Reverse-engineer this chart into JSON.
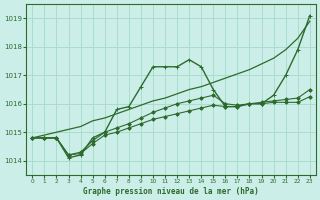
{
  "title": "Graphe pression niveau de la mer (hPa)",
  "bg_color": "#cceee8",
  "grid_color": "#aaddcc",
  "line_color": "#2d6a2d",
  "xlim": [
    -0.5,
    23.5
  ],
  "ylim": [
    1013.5,
    1019.5
  ],
  "yticks": [
    1014,
    1015,
    1016,
    1017,
    1018,
    1019
  ],
  "xticks": [
    0,
    1,
    2,
    3,
    4,
    5,
    6,
    7,
    8,
    9,
    10,
    11,
    12,
    13,
    14,
    15,
    16,
    17,
    18,
    19,
    20,
    21,
    22,
    23
  ],
  "series": [
    {
      "y": [
        1014.8,
        1014.8,
        1014.8,
        1014.1,
        1014.2,
        1014.8,
        1015.0,
        1015.8,
        1015.9,
        1016.6,
        1017.3,
        1017.3,
        1017.3,
        1017.55,
        1017.3,
        1016.5,
        1015.9,
        1015.9,
        1016.0,
        1016.0,
        1016.3,
        1017.0,
        1017.9,
        1019.1
      ],
      "marker": "+",
      "markersize": 3.5,
      "lw": 1.0
    },
    {
      "y": [
        1014.8,
        1014.9,
        1015.0,
        1015.1,
        1015.2,
        1015.4,
        1015.5,
        1015.65,
        1015.8,
        1015.95,
        1016.1,
        1016.2,
        1016.35,
        1016.5,
        1016.6,
        1016.75,
        1016.9,
        1017.05,
        1017.2,
        1017.4,
        1017.6,
        1017.9,
        1018.3,
        1018.9
      ],
      "marker": null,
      "markersize": 0,
      "lw": 0.9
    },
    {
      "y": [
        1014.8,
        1014.8,
        1014.8,
        1014.2,
        1014.3,
        1014.7,
        1015.0,
        1015.15,
        1015.3,
        1015.5,
        1015.7,
        1015.85,
        1016.0,
        1016.1,
        1016.2,
        1016.3,
        1016.0,
        1015.95,
        1016.0,
        1016.05,
        1016.1,
        1016.15,
        1016.2,
        1016.5
      ],
      "marker": "D",
      "markersize": 1.8,
      "lw": 0.8
    },
    {
      "y": [
        1014.8,
        1014.8,
        1014.8,
        1014.2,
        1014.25,
        1014.6,
        1014.9,
        1015.0,
        1015.15,
        1015.3,
        1015.45,
        1015.55,
        1015.65,
        1015.75,
        1015.85,
        1015.95,
        1015.9,
        1015.9,
        1016.0,
        1016.0,
        1016.05,
        1016.05,
        1016.05,
        1016.25
      ],
      "marker": "D",
      "markersize": 1.8,
      "lw": 0.8
    }
  ]
}
